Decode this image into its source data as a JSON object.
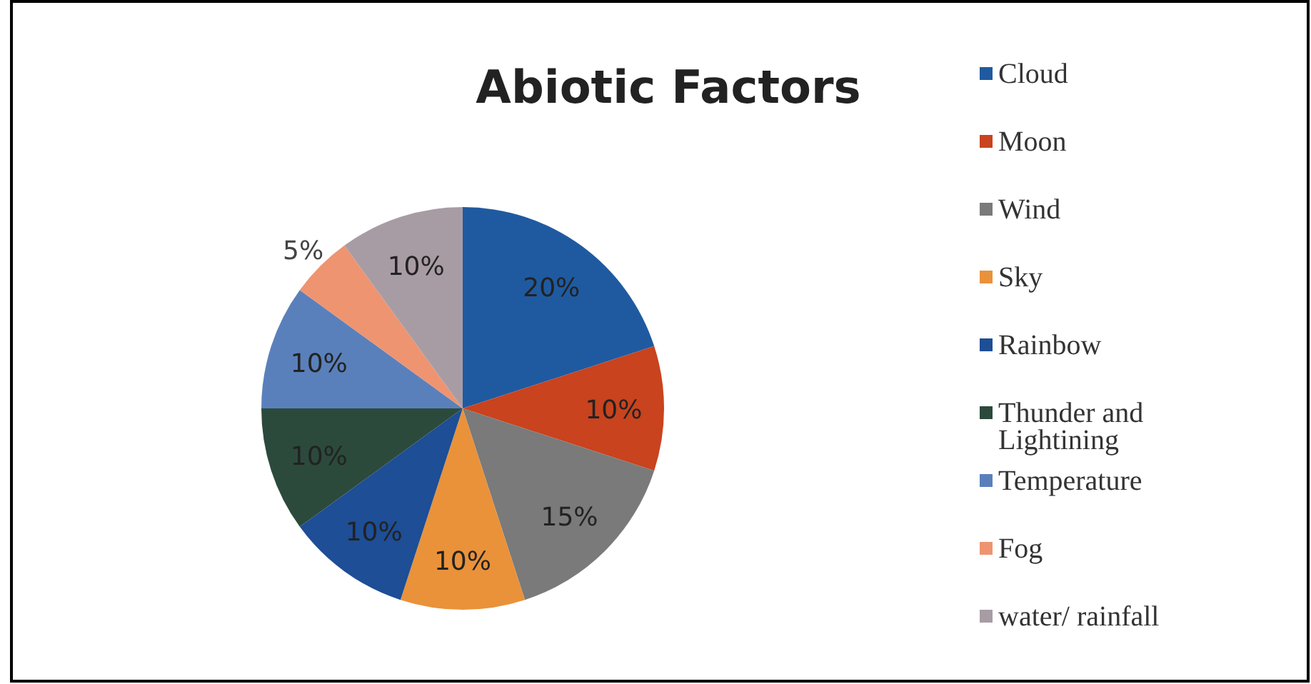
{
  "chart_data": {
    "type": "pie",
    "title": "Abiotic  Factors",
    "categories": [
      "Cloud",
      "Moon",
      "Wind",
      "Sky",
      "Rainbow",
      "Thunder and Lightining",
      "Temperature",
      "Fog",
      "water/ rainfall"
    ],
    "values": [
      20,
      10,
      15,
      10,
      10,
      10,
      10,
      5,
      10
    ],
    "colors": [
      "#1f5aa0",
      "#c8431e",
      "#7a7a7a",
      "#e9923a",
      "#1d4e96",
      "#2c4a3c",
      "#5a80bb",
      "#ee9470",
      "#a89ca4"
    ],
    "value_labels": [
      "20%",
      "10%",
      "15%",
      "10%",
      "10%",
      "10%",
      "10%",
      "5%",
      "10%"
    ],
    "legend": "right"
  }
}
